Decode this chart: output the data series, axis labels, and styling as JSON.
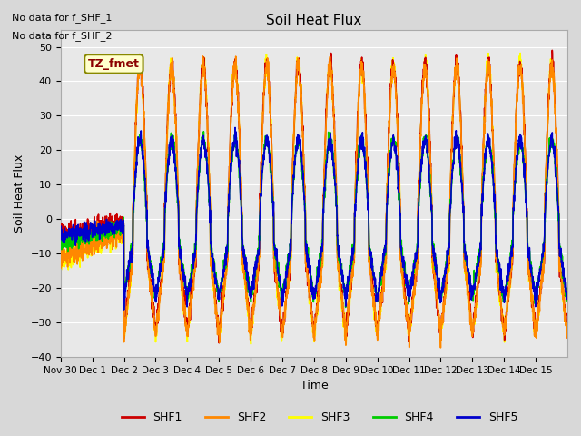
{
  "title": "Soil Heat Flux",
  "ylabel": "Soil Heat Flux",
  "xlabel": "Time",
  "ylim": [
    -40,
    55
  ],
  "xlim": [
    0,
    16
  ],
  "annotation_text1": "No data for f_SHF_1",
  "annotation_text2": "No data for f_SHF_2",
  "legend_box_label": "TZ_fmet",
  "x_tick_labels": [
    "Nov 30",
    "Dec 1",
    "Dec 2",
    "Dec 3",
    "Dec 4",
    "Dec 5",
    "Dec 6",
    "Dec 7",
    "Dec 8",
    "Dec 9",
    "Dec 10",
    "Dec 11",
    "Dec 12",
    "Dec 13",
    "Dec 14",
    "Dec 15"
  ],
  "x_tick_positions": [
    0,
    1,
    2,
    3,
    4,
    5,
    6,
    7,
    8,
    9,
    10,
    11,
    12,
    13,
    14,
    15
  ],
  "y_ticks": [
    -40,
    -30,
    -20,
    -10,
    0,
    10,
    20,
    30,
    40,
    50
  ],
  "series_colors": {
    "SHF1": "#cc0000",
    "SHF2": "#ff8800",
    "SHF3": "#ffff00",
    "SHF4": "#00cc00",
    "SHF5": "#0000cc"
  },
  "series_linewidth": 1.2,
  "fig_bg_color": "#d8d8d8",
  "ax_bg_color": "#e8e8e8",
  "grid_color": "#ffffff"
}
